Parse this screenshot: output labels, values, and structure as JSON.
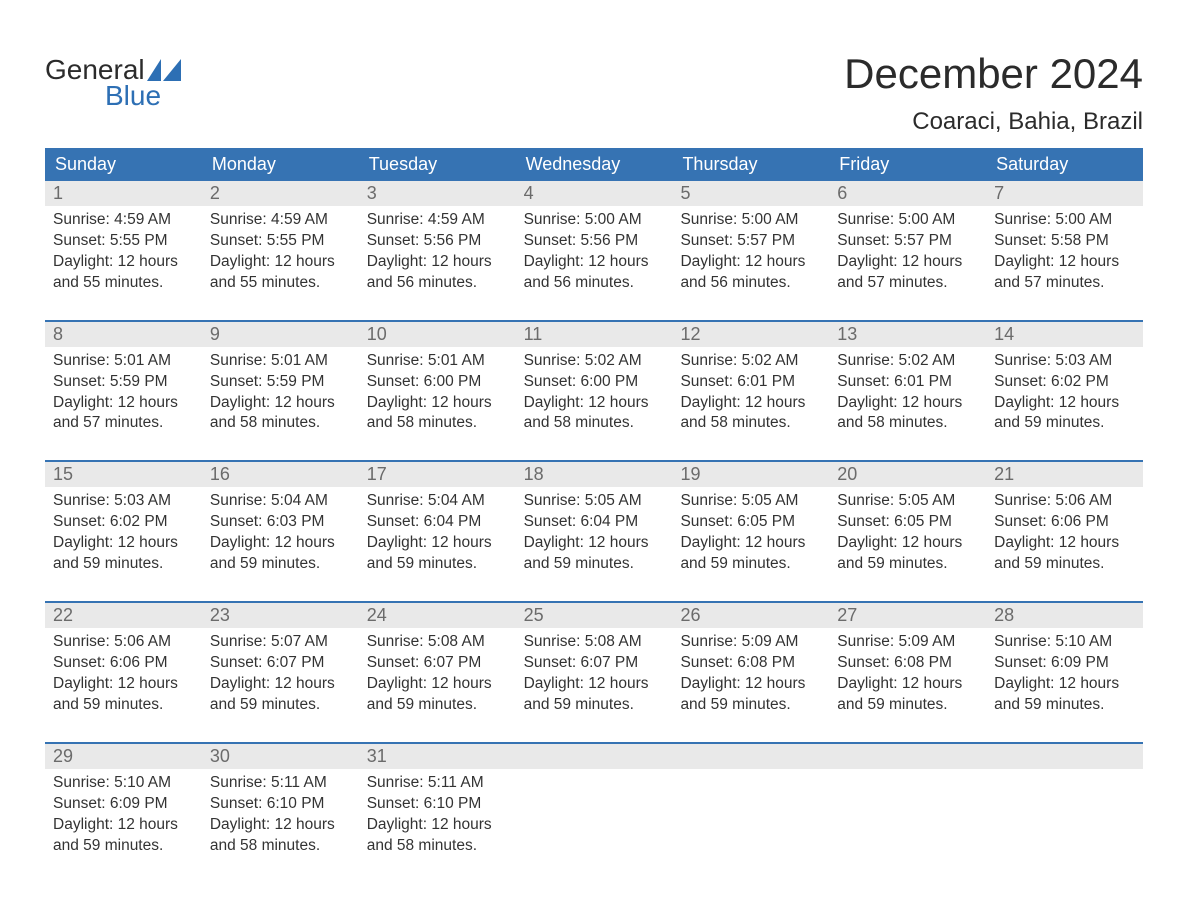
{
  "logo": {
    "line1": "General",
    "line2": "Blue"
  },
  "title": "December 2024",
  "subtitle": "Coaraci, Bahia, Brazil",
  "colors": {
    "header_bg": "#3673b3",
    "header_text": "#ffffff",
    "week_rule": "#3673b3",
    "daynum_bg": "#e9e9e9",
    "daynum_text": "#6b6b6b",
    "body_text": "#333333",
    "logo_blue": "#2d6fb4",
    "page_bg": "#ffffff"
  },
  "font_sizes": {
    "title": 42,
    "subtitle": 24,
    "weekday": 18,
    "daynum": 18,
    "cell": 15.5,
    "logo": 28
  },
  "layout": {
    "columns": 7,
    "rows": 5,
    "col_count": 7
  },
  "weekdays": [
    "Sunday",
    "Monday",
    "Tuesday",
    "Wednesday",
    "Thursday",
    "Friday",
    "Saturday"
  ],
  "labels": {
    "sunrise": "Sunrise: ",
    "sunset": "Sunset: ",
    "daylight_prefix": "Daylight: ",
    "daylight_hours_word": " hours",
    "daylight_and": "and ",
    "daylight_minutes_suffix": " minutes."
  },
  "days": [
    {
      "n": "1",
      "sunrise": "4:59 AM",
      "sunset": "5:55 PM",
      "dh": "12",
      "dm": "55"
    },
    {
      "n": "2",
      "sunrise": "4:59 AM",
      "sunset": "5:55 PM",
      "dh": "12",
      "dm": "55"
    },
    {
      "n": "3",
      "sunrise": "4:59 AM",
      "sunset": "5:56 PM",
      "dh": "12",
      "dm": "56"
    },
    {
      "n": "4",
      "sunrise": "5:00 AM",
      "sunset": "5:56 PM",
      "dh": "12",
      "dm": "56"
    },
    {
      "n": "5",
      "sunrise": "5:00 AM",
      "sunset": "5:57 PM",
      "dh": "12",
      "dm": "56"
    },
    {
      "n": "6",
      "sunrise": "5:00 AM",
      "sunset": "5:57 PM",
      "dh": "12",
      "dm": "57"
    },
    {
      "n": "7",
      "sunrise": "5:00 AM",
      "sunset": "5:58 PM",
      "dh": "12",
      "dm": "57"
    },
    {
      "n": "8",
      "sunrise": "5:01 AM",
      "sunset": "5:59 PM",
      "dh": "12",
      "dm": "57"
    },
    {
      "n": "9",
      "sunrise": "5:01 AM",
      "sunset": "5:59 PM",
      "dh": "12",
      "dm": "58"
    },
    {
      "n": "10",
      "sunrise": "5:01 AM",
      "sunset": "6:00 PM",
      "dh": "12",
      "dm": "58"
    },
    {
      "n": "11",
      "sunrise": "5:02 AM",
      "sunset": "6:00 PM",
      "dh": "12",
      "dm": "58"
    },
    {
      "n": "12",
      "sunrise": "5:02 AM",
      "sunset": "6:01 PM",
      "dh": "12",
      "dm": "58"
    },
    {
      "n": "13",
      "sunrise": "5:02 AM",
      "sunset": "6:01 PM",
      "dh": "12",
      "dm": "58"
    },
    {
      "n": "14",
      "sunrise": "5:03 AM",
      "sunset": "6:02 PM",
      "dh": "12",
      "dm": "59"
    },
    {
      "n": "15",
      "sunrise": "5:03 AM",
      "sunset": "6:02 PM",
      "dh": "12",
      "dm": "59"
    },
    {
      "n": "16",
      "sunrise": "5:04 AM",
      "sunset": "6:03 PM",
      "dh": "12",
      "dm": "59"
    },
    {
      "n": "17",
      "sunrise": "5:04 AM",
      "sunset": "6:04 PM",
      "dh": "12",
      "dm": "59"
    },
    {
      "n": "18",
      "sunrise": "5:05 AM",
      "sunset": "6:04 PM",
      "dh": "12",
      "dm": "59"
    },
    {
      "n": "19",
      "sunrise": "5:05 AM",
      "sunset": "6:05 PM",
      "dh": "12",
      "dm": "59"
    },
    {
      "n": "20",
      "sunrise": "5:05 AM",
      "sunset": "6:05 PM",
      "dh": "12",
      "dm": "59"
    },
    {
      "n": "21",
      "sunrise": "5:06 AM",
      "sunset": "6:06 PM",
      "dh": "12",
      "dm": "59"
    },
    {
      "n": "22",
      "sunrise": "5:06 AM",
      "sunset": "6:06 PM",
      "dh": "12",
      "dm": "59"
    },
    {
      "n": "23",
      "sunrise": "5:07 AM",
      "sunset": "6:07 PM",
      "dh": "12",
      "dm": "59"
    },
    {
      "n": "24",
      "sunrise": "5:08 AM",
      "sunset": "6:07 PM",
      "dh": "12",
      "dm": "59"
    },
    {
      "n": "25",
      "sunrise": "5:08 AM",
      "sunset": "6:07 PM",
      "dh": "12",
      "dm": "59"
    },
    {
      "n": "26",
      "sunrise": "5:09 AM",
      "sunset": "6:08 PM",
      "dh": "12",
      "dm": "59"
    },
    {
      "n": "27",
      "sunrise": "5:09 AM",
      "sunset": "6:08 PM",
      "dh": "12",
      "dm": "59"
    },
    {
      "n": "28",
      "sunrise": "5:10 AM",
      "sunset": "6:09 PM",
      "dh": "12",
      "dm": "59"
    },
    {
      "n": "29",
      "sunrise": "5:10 AM",
      "sunset": "6:09 PM",
      "dh": "12",
      "dm": "59"
    },
    {
      "n": "30",
      "sunrise": "5:11 AM",
      "sunset": "6:10 PM",
      "dh": "12",
      "dm": "58"
    },
    {
      "n": "31",
      "sunrise": "5:11 AM",
      "sunset": "6:10 PM",
      "dh": "12",
      "dm": "58"
    }
  ]
}
